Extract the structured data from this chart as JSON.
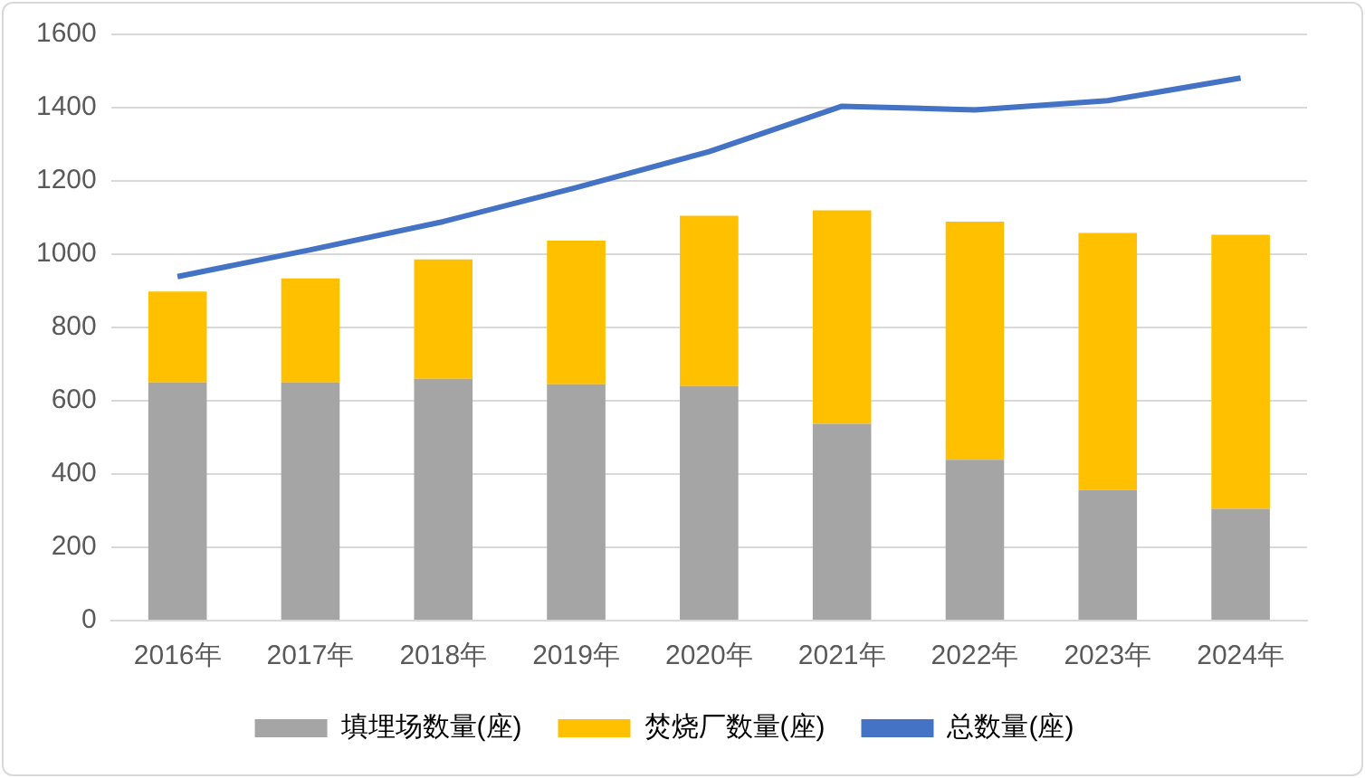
{
  "chart_data": {
    "type": "bar",
    "stacked": true,
    "categories": [
      "2016年",
      "2017年",
      "2018年",
      "2019年",
      "2020年",
      "2021年",
      "2022年",
      "2023年",
      "2024年"
    ],
    "series": [
      {
        "name": "填埋场数量(座)",
        "color": "#a5a5a5",
        "values": [
          650,
          650,
          660,
          645,
          640,
          537,
          439,
          356,
          305
        ]
      },
      {
        "name": "焚烧厂数量(座)",
        "color": "#ffc000",
        "values": [
          248,
          284,
          326,
          392,
          465,
          583,
          650,
          702,
          748
        ]
      },
      {
        "name": "总数量(座)",
        "type": "line",
        "color": "#4472c4",
        "values": [
          939,
          1012,
          1089,
          1182,
          1280,
          1404,
          1394,
          1419,
          1481
        ]
      }
    ],
    "ylim": [
      0,
      1600
    ],
    "yticks": [
      0,
      200,
      400,
      600,
      800,
      1000,
      1200,
      1400,
      1600
    ],
    "grid": "y",
    "legend": "bottom",
    "marker": "none"
  }
}
